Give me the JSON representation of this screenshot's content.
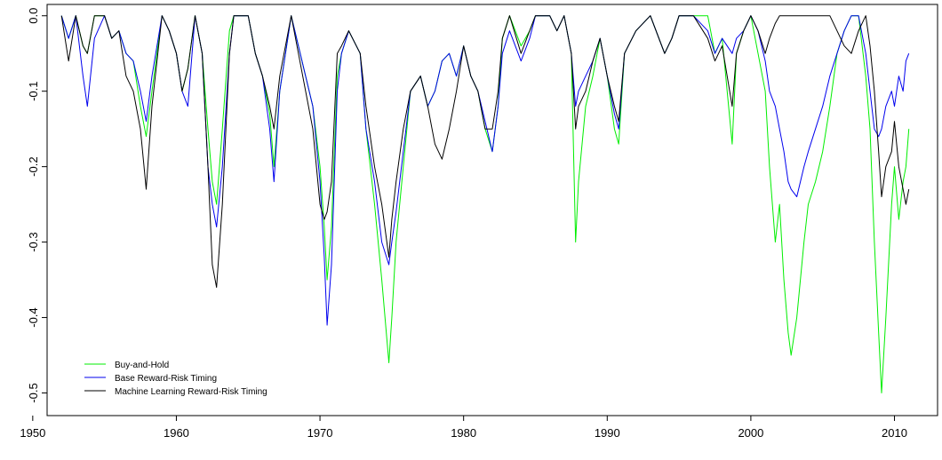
{
  "chart_data": {
    "type": "line",
    "title": "",
    "xlabel": "",
    "ylabel": "",
    "xlim": [
      1951,
      2013
    ],
    "ylim": [
      -0.53,
      0.015
    ],
    "x_ticks": [
      1950,
      1960,
      1970,
      1980,
      1990,
      2000,
      2010
    ],
    "x_tick_labels": [
      "1950",
      "1960",
      "1970",
      "1980",
      "1990",
      "2000",
      "2010"
    ],
    "y_ticks": [
      0.0,
      -0.1,
      -0.2,
      -0.3,
      -0.4,
      -0.5
    ],
    "y_tick_labels": [
      "0.0",
      "-0.1",
      "-0.2",
      "-0.3",
      "-0.4",
      "-0.5"
    ],
    "grid": false,
    "legend_position": "bottom-left",
    "series": [
      {
        "name": "Buy-and-Hold",
        "color": "#00ee00",
        "x": [
          1952.0,
          1952.5,
          1953.0,
          1953.5,
          1953.8,
          1954.3,
          1955.0,
          1955.5,
          1956.0,
          1956.5,
          1957.0,
          1957.5,
          1957.9,
          1958.3,
          1959.0,
          1959.5,
          1960.0,
          1960.4,
          1960.8,
          1961.3,
          1961.8,
          1962.2,
          1962.5,
          1962.8,
          1963.2,
          1963.7,
          1964.0,
          1965.0,
          1965.5,
          1966.0,
          1966.5,
          1966.8,
          1967.2,
          1968.0,
          1968.5,
          1969.0,
          1969.5,
          1970.0,
          1970.3,
          1970.5,
          1970.8,
          1971.2,
          1971.5,
          1972.0,
          1972.8,
          1973.2,
          1973.8,
          1974.3,
          1974.8,
          1975.0,
          1975.3,
          1975.8,
          1976.3,
          1977.0,
          1977.5,
          1978.0,
          1978.5,
          1979.0,
          1979.5,
          1980.0,
          1980.5,
          1981.0,
          1981.5,
          1982.0,
          1982.4,
          1982.7,
          1983.2,
          1984.0,
          1984.6,
          1985.0,
          1986.0,
          1986.5,
          1987.0,
          1987.5,
          1987.8,
          1988.0,
          1988.5,
          1989.0,
          1989.5,
          1990.0,
          1990.5,
          1990.8,
          1991.2,
          1992.0,
          1993.0,
          1994.0,
          1994.5,
          1995.0,
          1996.0,
          1997.0,
          1997.5,
          1998.0,
          1998.7,
          1999.0,
          1999.5,
          2000.0,
          2000.5,
          2001.0,
          2001.3,
          2001.7,
          2002.0,
          2002.3,
          2002.6,
          2002.8,
          2003.2,
          2003.7,
          2004.0,
          2004.5,
          2005.0,
          2005.5,
          2006.0,
          2006.5,
          2007.0,
          2007.5,
          2008.0,
          2008.3,
          2008.6,
          2008.9,
          2009.1,
          2009.4,
          2009.8,
          2010.0,
          2010.3,
          2010.6,
          2010.8,
          2011.0
        ],
        "values": [
          0.0,
          -0.03,
          0.0,
          -0.04,
          -0.05,
          0.0,
          0.0,
          -0.03,
          -0.02,
          -0.05,
          -0.06,
          -0.12,
          -0.16,
          -0.1,
          0.0,
          -0.02,
          -0.05,
          -0.1,
          -0.07,
          0.0,
          -0.05,
          -0.15,
          -0.22,
          -0.25,
          -0.15,
          -0.02,
          0.0,
          0.0,
          -0.05,
          -0.08,
          -0.13,
          -0.2,
          -0.1,
          0.0,
          -0.04,
          -0.08,
          -0.12,
          -0.2,
          -0.28,
          -0.35,
          -0.28,
          -0.08,
          -0.05,
          -0.02,
          -0.05,
          -0.15,
          -0.25,
          -0.35,
          -0.46,
          -0.4,
          -0.3,
          -0.2,
          -0.1,
          -0.08,
          -0.12,
          -0.1,
          -0.06,
          -0.05,
          -0.08,
          -0.04,
          -0.08,
          -0.1,
          -0.15,
          -0.18,
          -0.12,
          -0.03,
          0.0,
          -0.04,
          -0.02,
          0.0,
          0.0,
          -0.02,
          0.0,
          -0.05,
          -0.3,
          -0.22,
          -0.12,
          -0.08,
          -0.03,
          -0.08,
          -0.15,
          -0.17,
          -0.05,
          -0.02,
          0.0,
          -0.05,
          -0.03,
          0.0,
          0.0,
          0.0,
          -0.05,
          -0.03,
          -0.17,
          -0.05,
          -0.02,
          0.0,
          -0.05,
          -0.1,
          -0.2,
          -0.3,
          -0.25,
          -0.35,
          -0.42,
          -0.45,
          -0.4,
          -0.3,
          -0.25,
          -0.22,
          -0.18,
          -0.12,
          -0.05,
          -0.02,
          0.0,
          0.0,
          -0.08,
          -0.15,
          -0.3,
          -0.42,
          -0.5,
          -0.4,
          -0.25,
          -0.2,
          -0.27,
          -0.22,
          -0.2,
          -0.15
        ]
      },
      {
        "name": "Base Reward-Risk Timing",
        "color": "#0000ee",
        "x": [
          1952.0,
          1952.5,
          1953.0,
          1953.5,
          1953.8,
          1954.3,
          1955.0,
          1955.5,
          1956.0,
          1956.5,
          1957.0,
          1957.5,
          1957.9,
          1958.3,
          1959.0,
          1959.5,
          1960.0,
          1960.4,
          1960.8,
          1961.3,
          1961.8,
          1962.2,
          1962.5,
          1962.8,
          1963.2,
          1963.7,
          1964.0,
          1965.0,
          1965.5,
          1966.0,
          1966.5,
          1966.8,
          1967.2,
          1968.0,
          1968.5,
          1969.0,
          1969.5,
          1970.0,
          1970.3,
          1970.5,
          1970.8,
          1971.2,
          1971.5,
          1972.0,
          1972.8,
          1973.2,
          1973.8,
          1974.3,
          1974.8,
          1975.0,
          1975.3,
          1975.8,
          1976.3,
          1977.0,
          1977.5,
          1978.0,
          1978.5,
          1979.0,
          1979.5,
          1980.0,
          1980.5,
          1981.0,
          1981.5,
          1982.0,
          1982.4,
          1982.7,
          1983.2,
          1984.0,
          1984.6,
          1985.0,
          1986.0,
          1986.5,
          1987.0,
          1987.5,
          1987.8,
          1988.0,
          1988.5,
          1989.0,
          1989.5,
          1990.0,
          1990.5,
          1990.8,
          1991.2,
          1992.0,
          1993.0,
          1994.0,
          1994.5,
          1995.0,
          1996.0,
          1997.0,
          1997.5,
          1998.0,
          1998.7,
          1999.0,
          1999.5,
          2000.0,
          2000.5,
          2001.0,
          2001.3,
          2001.7,
          2002.0,
          2002.3,
          2002.6,
          2002.8,
          2003.2,
          2003.7,
          2004.0,
          2004.5,
          2005.0,
          2005.5,
          2006.0,
          2006.5,
          2007.0,
          2007.5,
          2008.0,
          2008.3,
          2008.6,
          2008.9,
          2009.1,
          2009.4,
          2009.8,
          2010.0,
          2010.3,
          2010.6,
          2010.8,
          2011.0
        ],
        "values": [
          0.0,
          -0.03,
          0.0,
          -0.08,
          -0.12,
          -0.03,
          0.0,
          -0.03,
          -0.02,
          -0.05,
          -0.06,
          -0.1,
          -0.14,
          -0.08,
          0.0,
          -0.02,
          -0.05,
          -0.1,
          -0.12,
          0.0,
          -0.05,
          -0.2,
          -0.25,
          -0.28,
          -0.2,
          -0.05,
          0.0,
          0.0,
          -0.05,
          -0.08,
          -0.15,
          -0.22,
          -0.1,
          0.0,
          -0.04,
          -0.08,
          -0.12,
          -0.22,
          -0.32,
          -0.41,
          -0.33,
          -0.1,
          -0.05,
          -0.02,
          -0.05,
          -0.15,
          -0.22,
          -0.3,
          -0.33,
          -0.3,
          -0.26,
          -0.18,
          -0.1,
          -0.08,
          -0.12,
          -0.1,
          -0.06,
          -0.05,
          -0.08,
          -0.04,
          -0.08,
          -0.1,
          -0.14,
          -0.18,
          -0.12,
          -0.05,
          -0.02,
          -0.06,
          -0.03,
          0.0,
          0.0,
          -0.02,
          0.0,
          -0.05,
          -0.12,
          -0.1,
          -0.08,
          -0.06,
          -0.03,
          -0.08,
          -0.13,
          -0.15,
          -0.05,
          -0.02,
          0.0,
          -0.05,
          -0.03,
          0.0,
          0.0,
          -0.02,
          -0.05,
          -0.03,
          -0.05,
          -0.03,
          -0.02,
          0.0,
          -0.02,
          -0.06,
          -0.1,
          -0.12,
          -0.15,
          -0.18,
          -0.22,
          -0.23,
          -0.24,
          -0.2,
          -0.18,
          -0.15,
          -0.12,
          -0.08,
          -0.05,
          -0.02,
          0.0,
          0.0,
          -0.05,
          -0.1,
          -0.15,
          -0.16,
          -0.15,
          -0.12,
          -0.1,
          -0.12,
          -0.08,
          -0.1,
          -0.06,
          -0.05
        ]
      },
      {
        "name": "Machine Learning Reward-Risk Timing",
        "color": "#000000",
        "x": [
          1952.0,
          1952.5,
          1953.0,
          1953.5,
          1953.8,
          1954.3,
          1955.0,
          1955.5,
          1956.0,
          1956.5,
          1957.0,
          1957.5,
          1957.9,
          1958.3,
          1959.0,
          1959.5,
          1960.0,
          1960.4,
          1960.8,
          1961.3,
          1961.8,
          1962.2,
          1962.5,
          1962.8,
          1963.2,
          1963.7,
          1964.0,
          1965.0,
          1965.5,
          1966.0,
          1966.5,
          1966.8,
          1967.2,
          1968.0,
          1968.5,
          1969.0,
          1969.5,
          1970.0,
          1970.3,
          1970.5,
          1970.8,
          1971.2,
          1971.5,
          1972.0,
          1972.8,
          1973.2,
          1973.8,
          1974.3,
          1974.8,
          1975.0,
          1975.3,
          1975.8,
          1976.3,
          1977.0,
          1977.5,
          1978.0,
          1978.5,
          1979.0,
          1979.5,
          1980.0,
          1980.5,
          1981.0,
          1981.5,
          1982.0,
          1982.4,
          1982.7,
          1983.2,
          1984.0,
          1984.6,
          1985.0,
          1986.0,
          1986.5,
          1987.0,
          1987.5,
          1987.8,
          1988.0,
          1988.5,
          1989.0,
          1989.5,
          1990.0,
          1990.5,
          1990.8,
          1991.2,
          1992.0,
          1993.0,
          1994.0,
          1994.5,
          1995.0,
          1996.0,
          1997.0,
          1997.5,
          1998.0,
          1998.7,
          1999.0,
          1999.5,
          2000.0,
          2000.5,
          2001.0,
          2001.3,
          2001.7,
          2002.0,
          2002.3,
          2002.6,
          2002.8,
          2003.2,
          2003.7,
          2004.0,
          2004.5,
          2005.0,
          2005.5,
          2006.0,
          2006.5,
          2007.0,
          2007.5,
          2008.0,
          2008.3,
          2008.6,
          2008.9,
          2009.1,
          2009.4,
          2009.8,
          2010.0,
          2010.3,
          2010.6,
          2010.8,
          2011.0
        ],
        "values": [
          0.0,
          -0.06,
          0.0,
          -0.04,
          -0.05,
          0.0,
          0.0,
          -0.03,
          -0.02,
          -0.08,
          -0.1,
          -0.15,
          -0.23,
          -0.12,
          0.0,
          -0.02,
          -0.05,
          -0.1,
          -0.07,
          0.0,
          -0.05,
          -0.2,
          -0.33,
          -0.36,
          -0.25,
          -0.05,
          0.0,
          0.0,
          -0.05,
          -0.08,
          -0.12,
          -0.15,
          -0.08,
          0.0,
          -0.05,
          -0.1,
          -0.15,
          -0.25,
          -0.27,
          -0.26,
          -0.22,
          -0.05,
          -0.04,
          -0.02,
          -0.05,
          -0.12,
          -0.2,
          -0.25,
          -0.32,
          -0.27,
          -0.22,
          -0.15,
          -0.1,
          -0.08,
          -0.12,
          -0.17,
          -0.19,
          -0.15,
          -0.1,
          -0.04,
          -0.08,
          -0.1,
          -0.15,
          -0.15,
          -0.1,
          -0.03,
          0.0,
          -0.05,
          -0.02,
          0.0,
          0.0,
          -0.02,
          0.0,
          -0.05,
          -0.15,
          -0.12,
          -0.1,
          -0.06,
          -0.03,
          -0.08,
          -0.12,
          -0.14,
          -0.05,
          -0.02,
          0.0,
          -0.05,
          -0.03,
          0.0,
          0.0,
          -0.03,
          -0.06,
          -0.04,
          -0.12,
          -0.05,
          -0.02,
          0.0,
          -0.02,
          -0.05,
          -0.03,
          -0.01,
          0.0,
          0.0,
          0.0,
          0.0,
          0.0,
          0.0,
          0.0,
          0.0,
          0.0,
          0.0,
          -0.02,
          -0.04,
          -0.05,
          -0.02,
          0.0,
          -0.04,
          -0.1,
          -0.18,
          -0.24,
          -0.2,
          -0.18,
          -0.14,
          -0.2,
          -0.23,
          -0.25,
          -0.23
        ]
      }
    ]
  }
}
